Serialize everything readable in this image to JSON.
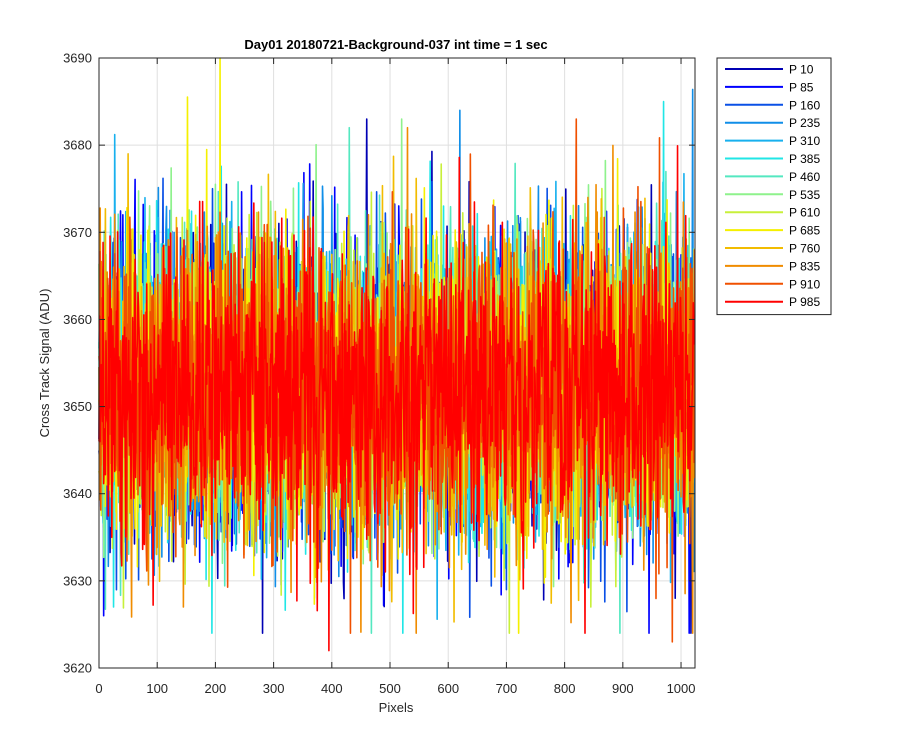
{
  "chart_data": {
    "type": "line",
    "title": "Day01 20180721-Background-037 int time = 1 sec",
    "xlabel": "Pixels",
    "ylabel": "Cross Track Signal (ADU)",
    "xlim": [
      0,
      1024
    ],
    "ylim": [
      3620,
      3690
    ],
    "xticks": [
      0,
      100,
      200,
      300,
      400,
      500,
      600,
      700,
      800,
      900,
      1000
    ],
    "yticks": [
      3620,
      3630,
      3640,
      3650,
      3660,
      3670,
      3680,
      3690
    ],
    "grid": true,
    "legend_position": "outside-top-right",
    "series_summary": {
      "point_count": 1024,
      "center": 3652,
      "typical_range": [
        3636,
        3670
      ]
    },
    "series": [
      {
        "name": "P 10",
        "color": "#0000b4",
        "peaks": [
          [
            460,
            3683
          ]
        ]
      },
      {
        "name": "P 85",
        "color": "#0000ff",
        "peaks": [
          [
            8,
            3626
          ]
        ]
      },
      {
        "name": "P 160",
        "color": "#0a50e6",
        "peaks": [
          [
            700,
            3629
          ]
        ]
      },
      {
        "name": "P 235",
        "color": "#108ee8",
        "peaks": [
          [
            620,
            3684
          ]
        ]
      },
      {
        "name": "P 310",
        "color": "#18b0ee",
        "peaks": [
          [
            370,
            3628
          ]
        ]
      },
      {
        "name": "P 385",
        "color": "#20e6e6",
        "peaks": [
          [
            970,
            3685
          ],
          [
            25,
            3627
          ]
        ]
      },
      {
        "name": "P 460",
        "color": "#54e8c0",
        "peaks": [
          [
            430,
            3682
          ]
        ]
      },
      {
        "name": "P 535",
        "color": "#8ef28c",
        "peaks": [
          [
            520,
            3683
          ]
        ]
      },
      {
        "name": "P 610",
        "color": "#c8f03a",
        "peaks": [
          [
            705,
            3624
          ],
          [
            845,
            3627
          ]
        ]
      },
      {
        "name": "P 685",
        "color": "#f5f000",
        "peaks": [
          [
            208,
            3690
          ]
        ]
      },
      {
        "name": "P 760",
        "color": "#f2bc00",
        "peaks": [
          [
            50,
            3679
          ]
        ]
      },
      {
        "name": "P 835",
        "color": "#f08c00",
        "peaks": [
          [
            145,
            3627
          ],
          [
            530,
            3682
          ]
        ]
      },
      {
        "name": "P 910",
        "color": "#f05000",
        "peaks": [
          [
            820,
            3683
          ],
          [
            985,
            3623
          ]
        ]
      },
      {
        "name": "P 985",
        "color": "#ff0000",
        "peaks": [
          [
            395,
            3622
          ]
        ]
      }
    ]
  }
}
